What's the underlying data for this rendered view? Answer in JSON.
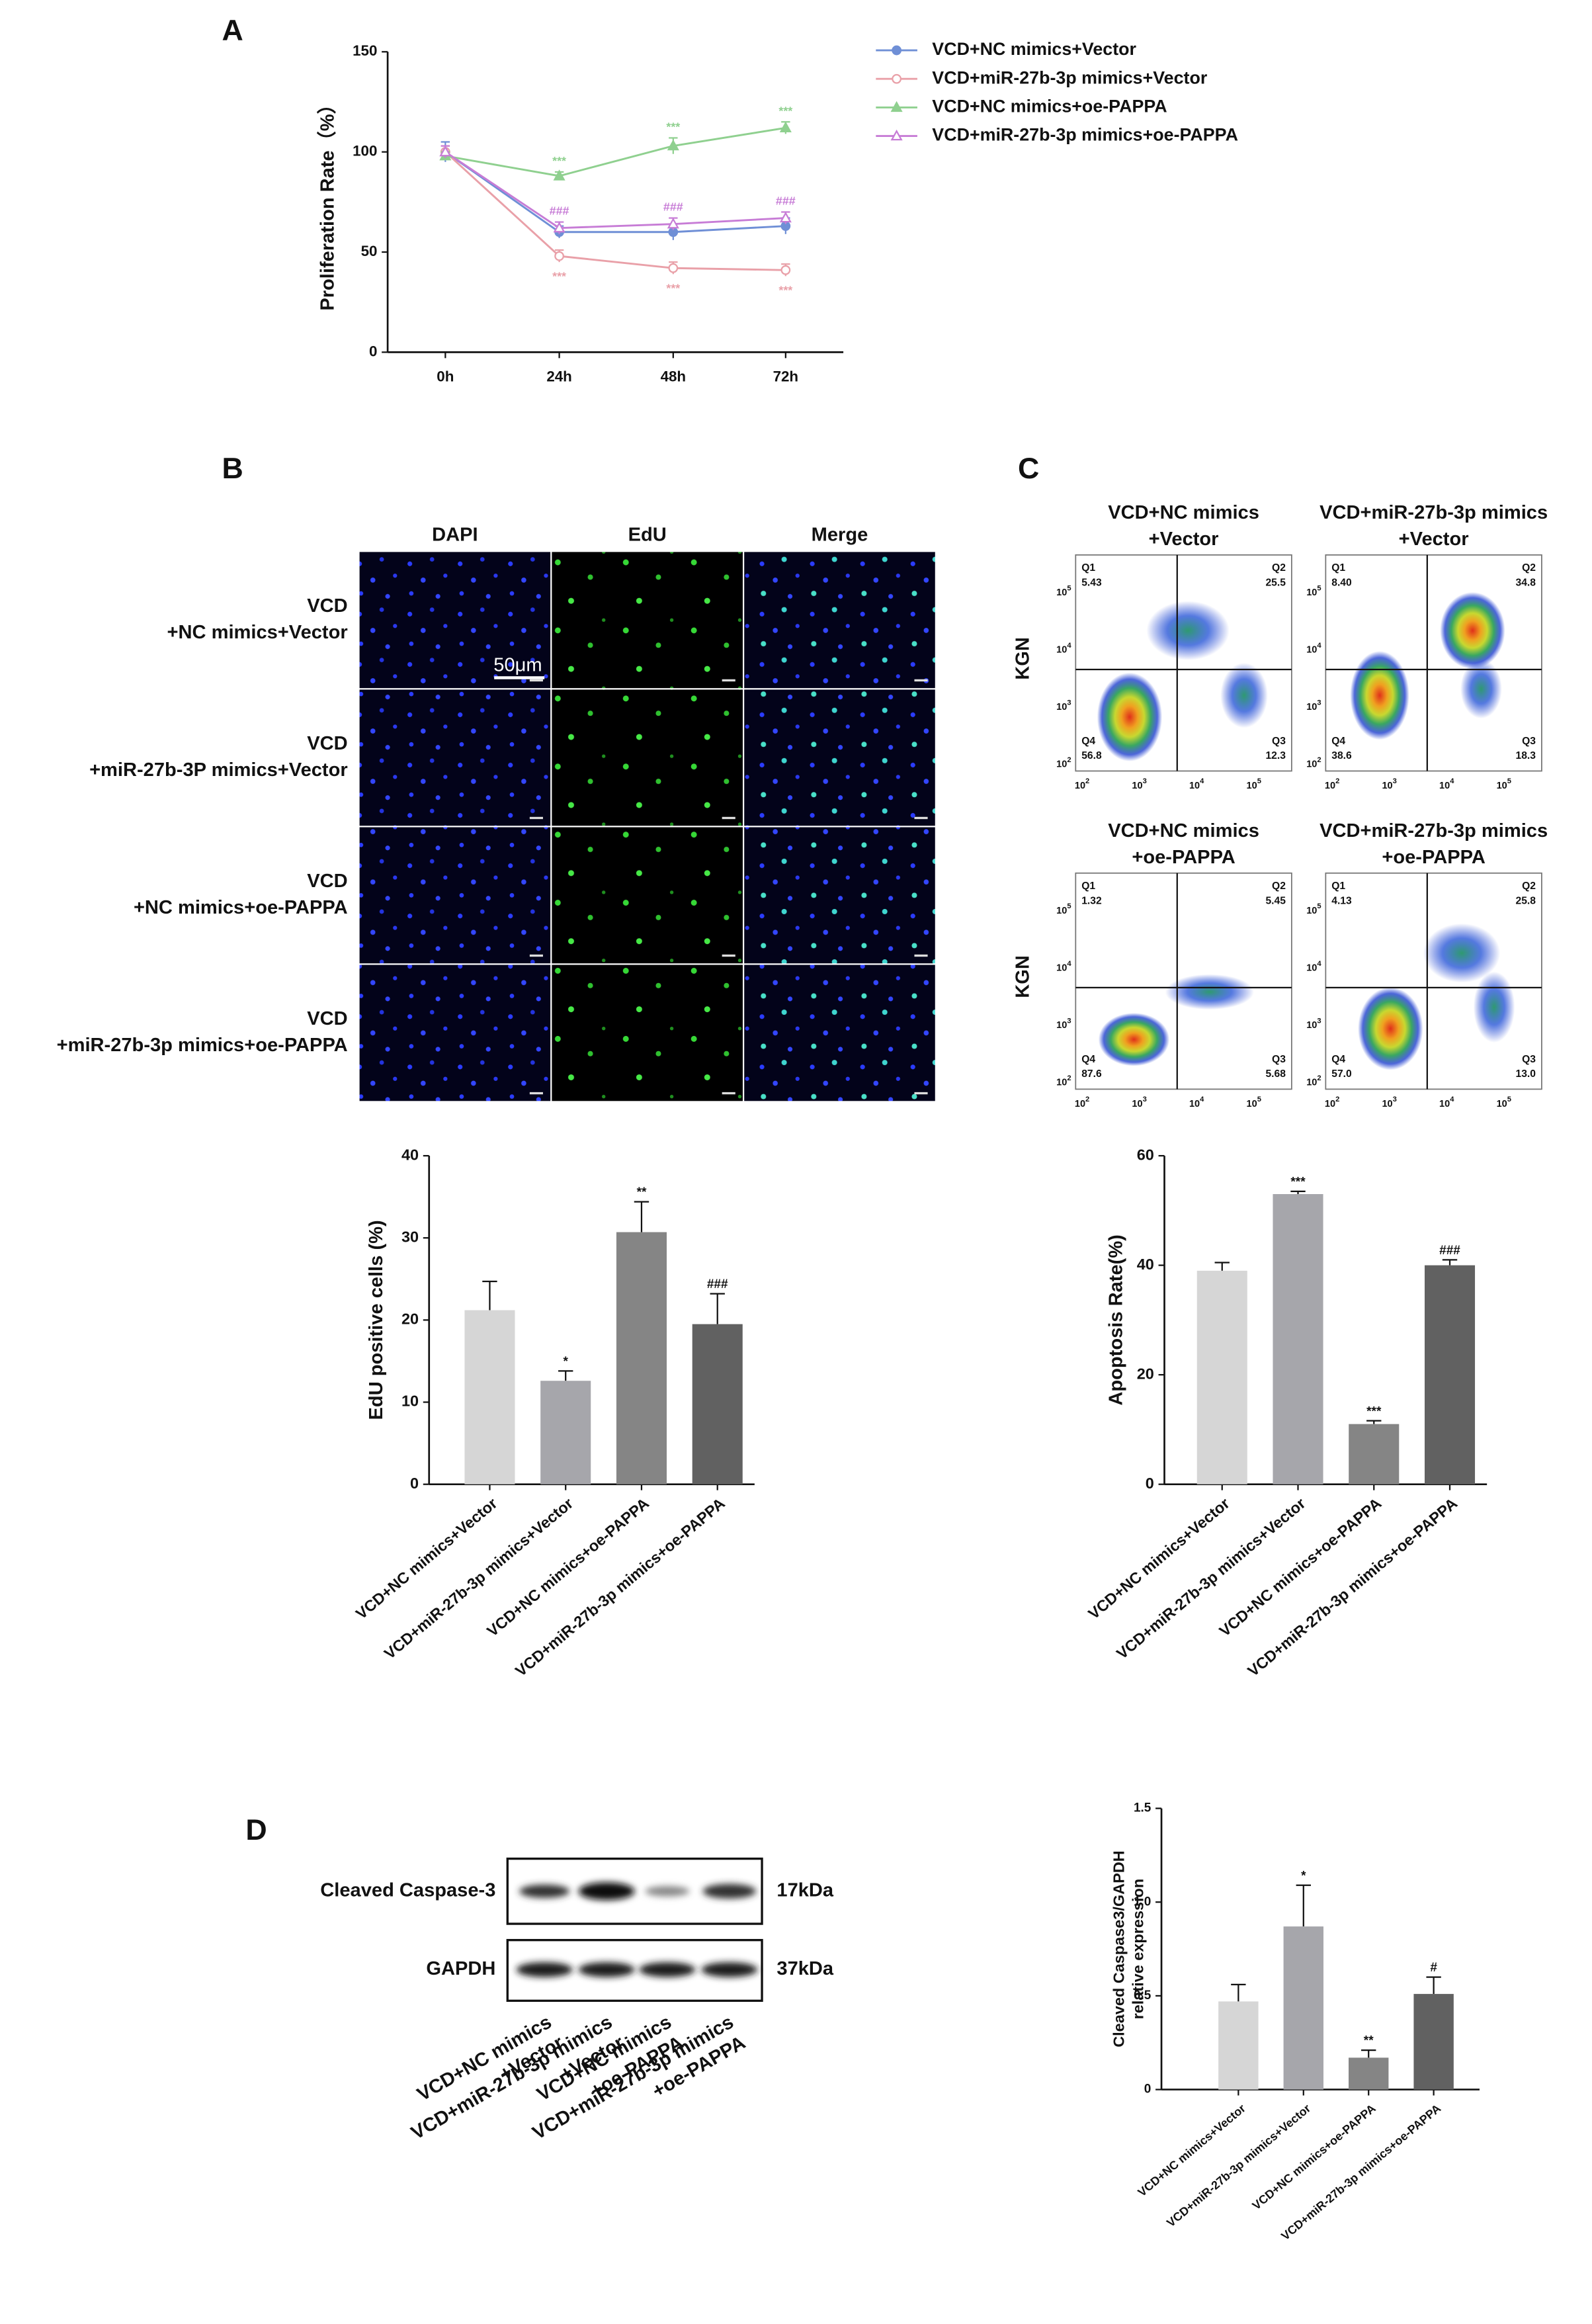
{
  "panel_labels": [
    "A",
    "B",
    "C",
    "D"
  ],
  "chart_data": [
    {
      "type": "line",
      "y_label": "Proliferation Rate（%）",
      "categories": [
        "0h",
        "24h",
        "48h",
        "72h"
      ],
      "ylim": [
        0,
        150
      ],
      "yticks": [
        0,
        50,
        100,
        150
      ],
      "series": [
        {
          "name": "VCD+NC mimics+Vector",
          "color": "#6f8fd6",
          "marker": "circle",
          "values": [
            100,
            60,
            60,
            63
          ],
          "errors": [
            5,
            3,
            4,
            4
          ],
          "annotations": [
            null,
            null,
            null,
            null
          ]
        },
        {
          "name": "VCD+miR-27b-3p mimics+Vector",
          "color": "#e9a0a8",
          "marker": "circle-open",
          "values": [
            100,
            48,
            42,
            41
          ],
          "errors": [
            3,
            3,
            3,
            3
          ],
          "annotations": [
            null,
            "***",
            "***",
            "***"
          ]
        },
        {
          "name": "VCD+NC mimics+oe-PAPPA",
          "color": "#8fd08f",
          "marker": "triangle",
          "values": [
            98,
            88,
            103,
            112
          ],
          "errors": [
            2,
            2,
            4,
            3
          ],
          "annotations": [
            null,
            "***",
            "***",
            "***"
          ]
        },
        {
          "name": "VCD+miR-27b-3p mimics+oe-PAPPA",
          "color": "#c77cd6",
          "marker": "triangle-open",
          "values": [
            100,
            62,
            64,
            67
          ],
          "errors": [
            3,
            3,
            3,
            3
          ],
          "annotations": [
            null,
            "###",
            "###",
            "###"
          ]
        }
      ]
    },
    {
      "type": "bar",
      "y_label": "EdU positive cells (%)",
      "categories": [
        "VCD+NC mimics+Vector",
        "VCD+miR-27b-3p mimics+Vector",
        "VCD+NC mimics+oe-PAPPA",
        "VCD+miR-27b-3p mimics+oe-PAPPA"
      ],
      "values": [
        21.2,
        12.6,
        30.7,
        19.5
      ],
      "errors": [
        3.5,
        1.2,
        3.7,
        3.7
      ],
      "annotations": [
        null,
        "*",
        "**",
        "###"
      ],
      "colors": [
        "#d6d6d6",
        "#a6a6ab",
        "#858585",
        "#616161"
      ],
      "ylim": [
        0,
        40
      ],
      "yticks": [
        0,
        10,
        20,
        30,
        40
      ]
    },
    {
      "type": "bar",
      "y_label": "Apoptosis Rate(%)",
      "categories": [
        "VCD+NC mimics+Vector",
        "VCD+miR-27b-3p mimics+Vector",
        "VCD+NC mimics+oe-PAPPA",
        "VCD+miR-27b-3p mimics+oe-PAPPA"
      ],
      "values": [
        39,
        53,
        11,
        40
      ],
      "errors": [
        1.5,
        0.5,
        0.6,
        1
      ],
      "annotations": [
        null,
        "***",
        "***",
        "###"
      ],
      "colors": [
        "#d6d6d6",
        "#a6a6ab",
        "#858585",
        "#616161"
      ],
      "ylim": [
        0,
        60
      ],
      "yticks": [
        0,
        20,
        40,
        60
      ]
    },
    {
      "type": "bar",
      "y_label": [
        "Cleaved Caspase3/GAPDH",
        "relative expression"
      ],
      "categories": [
        "VCD+NC mimics+Vector",
        "VCD+miR-27b-3p mimics+Vector",
        "VCD+NC mimics+oe-PAPPA",
        "VCD+miR-27b-3p mimics+oe-PAPPA"
      ],
      "values": [
        0.47,
        0.87,
        0.17,
        0.51
      ],
      "errors": [
        0.09,
        0.22,
        0.04,
        0.09
      ],
      "annotations": [
        null,
        "*",
        "**",
        "#"
      ],
      "colors": [
        "#d6d6d6",
        "#a6a6ab",
        "#858585",
        "#616161"
      ],
      "ylim": [
        0,
        1.5
      ],
      "yticks": [
        0,
        0.5,
        {
          "value": 1,
          "label": "1.0"
        },
        1.5
      ]
    }
  ],
  "microscopy": {
    "columns": [
      "DAPI",
      "EdU",
      "Merge"
    ],
    "rows": [
      [
        "VCD",
        "+NC mimics+Vector"
      ],
      [
        "VCD",
        "+miR-27b-3P mimics+Vector"
      ],
      [
        "VCD",
        "+NC mimics+oe-PAPPA"
      ],
      [
        "VCD",
        "+miR-27b-3p mimics+oe-PAPPA"
      ]
    ],
    "scale_bar": "50μm"
  },
  "flow": {
    "y_label": "KGN",
    "axis_base": "10",
    "axis_exponents": [
      2,
      3,
      4,
      5
    ],
    "plots": [
      {
        "title": [
          "VCD+NC mimics",
          "+Vector"
        ],
        "quadrants": [
          {
            "name": "Q1",
            "value": "5.43"
          },
          {
            "name": "Q2",
            "value": "25.5"
          },
          {
            "name": "Q3",
            "value": "12.3"
          },
          {
            "name": "Q4",
            "value": "56.8"
          }
        ]
      },
      {
        "title": [
          "VCD+miR-27b-3p mimics",
          "+Vector"
        ],
        "quadrants": [
          {
            "name": "Q1",
            "value": "8.40"
          },
          {
            "name": "Q2",
            "value": "34.8"
          },
          {
            "name": "Q3",
            "value": "18.3"
          },
          {
            "name": "Q4",
            "value": "38.6"
          }
        ]
      },
      {
        "title": [
          "VCD+NC mimics",
          "+oe-PAPPA"
        ],
        "quadrants": [
          {
            "name": "Q1",
            "value": "1.32"
          },
          {
            "name": "Q2",
            "value": "5.45"
          },
          {
            "name": "Q3",
            "value": "5.68"
          },
          {
            "name": "Q4",
            "value": "87.6"
          }
        ]
      },
      {
        "title": [
          "VCD+miR-27b-3p mimics",
          "+oe-PAPPA"
        ],
        "quadrants": [
          {
            "name": "Q1",
            "value": "4.13"
          },
          {
            "name": "Q2",
            "value": "25.8"
          },
          {
            "name": "Q3",
            "value": "13.0"
          },
          {
            "name": "Q4",
            "value": "57.0"
          }
        ]
      }
    ]
  },
  "blot": {
    "proteins": [
      {
        "name": "Cleaved Caspase-3",
        "size": "17kDa"
      },
      {
        "name": "GAPDH",
        "size": "37kDa"
      }
    ],
    "lanes": [
      [
        "VCD+NC mimics",
        "+Vector"
      ],
      [
        "VCD+miR-27b-3p mimics",
        "+Vector"
      ],
      [
        "VCD+NC mimics",
        "+oe-PAPPA"
      ],
      [
        "VCD+miR-27b-3p mimics",
        "+oe-PAPPA"
      ]
    ]
  }
}
